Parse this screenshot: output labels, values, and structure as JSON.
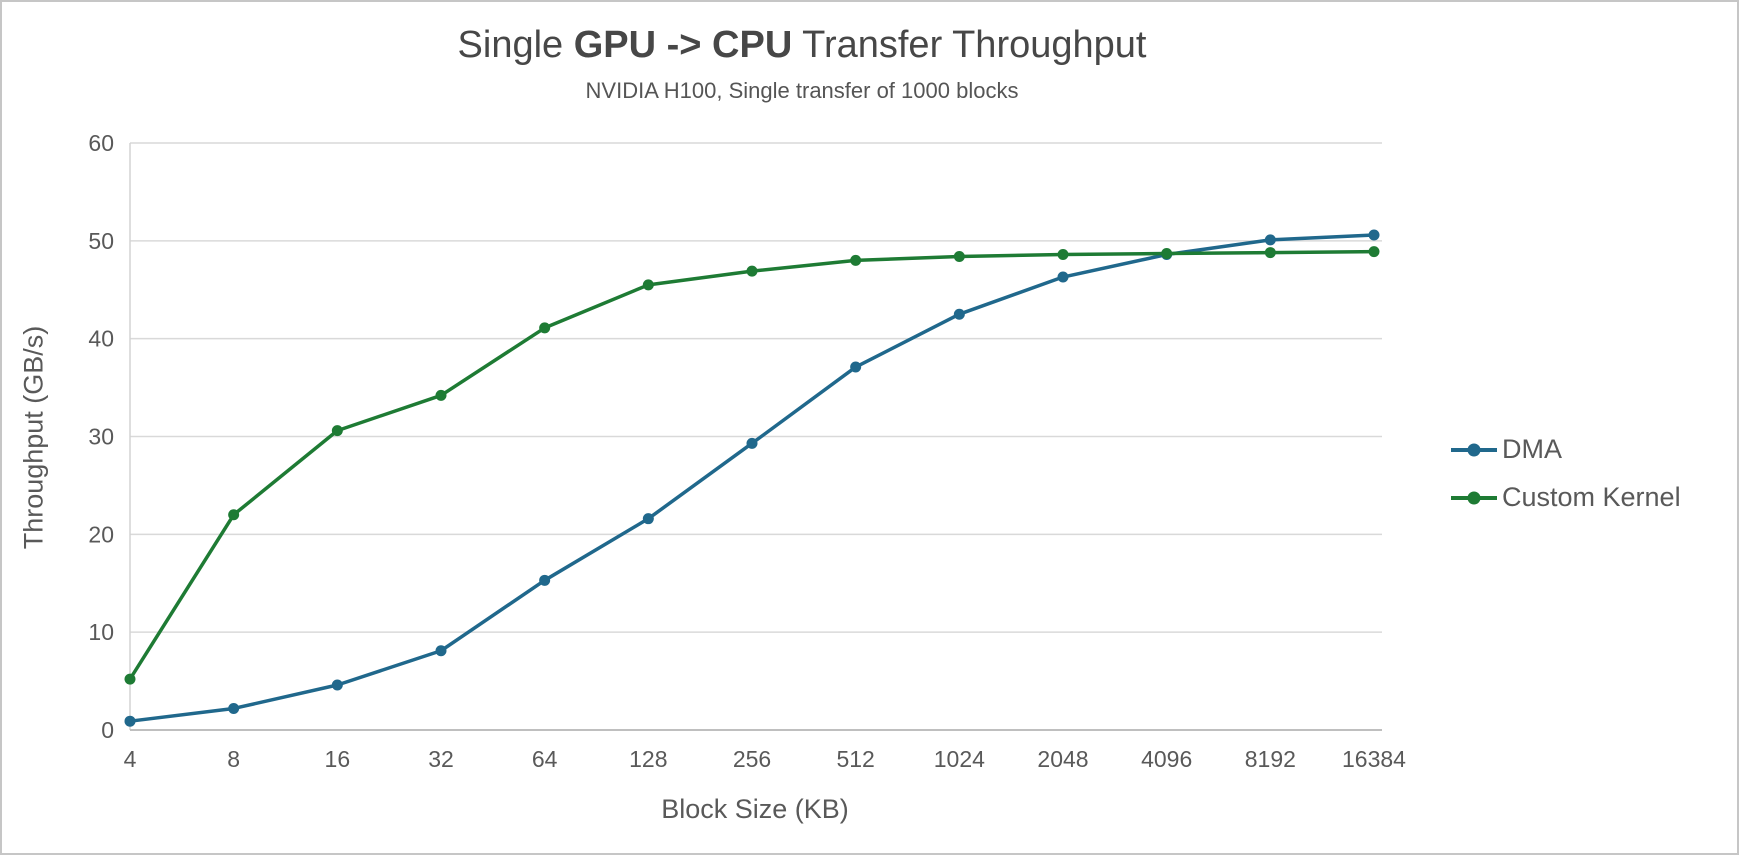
{
  "title": {
    "prefix": "Single ",
    "bold": "GPU -> CPU",
    "suffix": " Transfer Throughput"
  },
  "subtitle": "NVIDIA H100, Single transfer of 1000 blocks",
  "chart_data": {
    "type": "line",
    "title": "Single GPU -> CPU Transfer Throughput",
    "subtitle": "NVIDIA H100, Single transfer of 1000 blocks",
    "xlabel": "Block Size (KB)",
    "ylabel": "Throughput (GB/s)",
    "categories": [
      "4",
      "8",
      "16",
      "32",
      "64",
      "128",
      "256",
      "512",
      "1024",
      "2048",
      "4096",
      "8192",
      "16384"
    ],
    "yticks": [
      0,
      10,
      20,
      30,
      40,
      50,
      60
    ],
    "ylim": [
      0,
      60
    ],
    "grid": "horizontal",
    "legend_position": "right",
    "series": [
      {
        "name": "DMA",
        "color": "#20688c",
        "values": [
          0.9,
          2.2,
          4.6,
          8.1,
          15.3,
          21.6,
          29.3,
          37.1,
          42.5,
          46.3,
          48.6,
          50.1,
          50.6
        ]
      },
      {
        "name": "Custom Kernel",
        "color": "#1e7b34",
        "values": [
          5.2,
          22.0,
          30.6,
          34.2,
          41.1,
          45.5,
          46.9,
          48.0,
          48.4,
          48.6,
          48.7,
          48.8,
          48.9
        ]
      }
    ]
  },
  "colors": {
    "gridline": "#d9d9d9",
    "axis_line": "#bfbfbf",
    "y_axis_line": "#d3d3d3",
    "tick_text": "#595959",
    "title_text": "#474747"
  }
}
